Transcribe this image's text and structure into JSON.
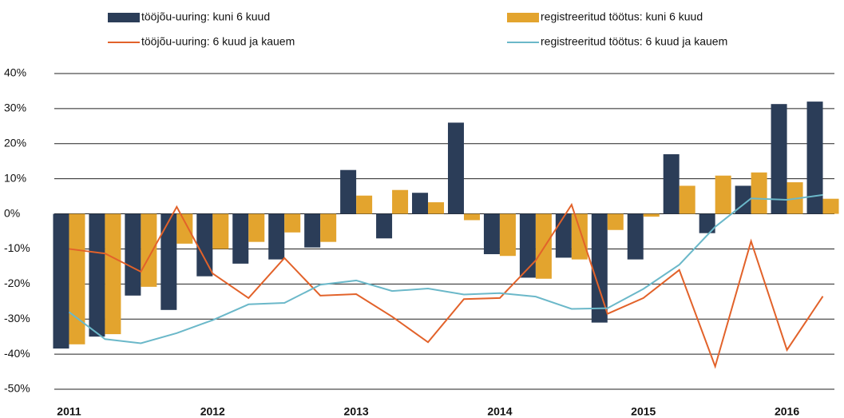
{
  "chart_data": {
    "type": "bar-line",
    "categories": [
      "2011",
      null,
      null,
      null,
      "2012",
      null,
      null,
      null,
      "2013",
      null,
      null,
      null,
      "2014",
      null,
      null,
      null,
      "2015",
      null,
      null,
      null,
      "2016",
      null
    ],
    "series": [
      {
        "name": "tööjõu-uuring: kuni 6 kuud",
        "type": "bar",
        "color": "#2b3d58",
        "values": [
          -38.4,
          -35,
          -23.3,
          -27.4,
          -17.8,
          -14.2,
          -13,
          -9.6,
          12.5,
          -7,
          6,
          26,
          -11.5,
          -18.2,
          -12.5,
          -31,
          -13,
          17,
          -5.5,
          8,
          31.3,
          32
        ]
      },
      {
        "name": "registreeritud töötus: kuni 6 kuud",
        "type": "bar",
        "color": "#e3a42e",
        "values": [
          -37.2,
          -34.3,
          -20.8,
          -8.5,
          -10,
          -8,
          -5.3,
          -8,
          5.2,
          6.8,
          3.3,
          -1.8,
          -12,
          -18.5,
          -13,
          -4.6,
          -0.8,
          8,
          10.9,
          11.8,
          9,
          4.3
        ]
      },
      {
        "name": "tööjõu-uuring: 6 kuud ja kauem",
        "type": "line",
        "color": "#e2622a",
        "values": [
          -10,
          -11.3,
          -16.5,
          2,
          -17,
          -24,
          -12.6,
          -23.3,
          -22.9,
          -29.3,
          -36.6,
          -24.3,
          -24,
          -13.3,
          2.6,
          -28.5,
          -24,
          -16,
          -43.5,
          -7.8,
          -38.8,
          -23.5
        ]
      },
      {
        "name": "registreeritud töötus: 6 kuud ja kauem",
        "type": "line",
        "color": "#6bb8c9",
        "values": [
          -28,
          -35.7,
          -36.9,
          -34,
          -30.3,
          -25.8,
          -25.4,
          -20.2,
          -19,
          -22,
          -21.3,
          -23,
          -22.6,
          -23.6,
          -27.1,
          -26.9,
          -21.4,
          -14.5,
          -3.7,
          4.4,
          4,
          5.4
        ]
      }
    ],
    "ylim": [
      -50,
      40
    ],
    "yticks": [
      {
        "value": -50,
        "label": "-50%"
      },
      {
        "value": -40,
        "label": "-40%"
      },
      {
        "value": -30,
        "label": "-30%"
      },
      {
        "value": -20,
        "label": "-20%"
      },
      {
        "value": -10,
        "label": "-10%"
      },
      {
        "value": 0,
        "label": "0%"
      },
      {
        "value": 10,
        "label": "10%"
      },
      {
        "value": 20,
        "label": "20%"
      },
      {
        "value": 30,
        "label": "30%"
      },
      {
        "value": 40,
        "label": "40%"
      }
    ],
    "grid": true
  }
}
